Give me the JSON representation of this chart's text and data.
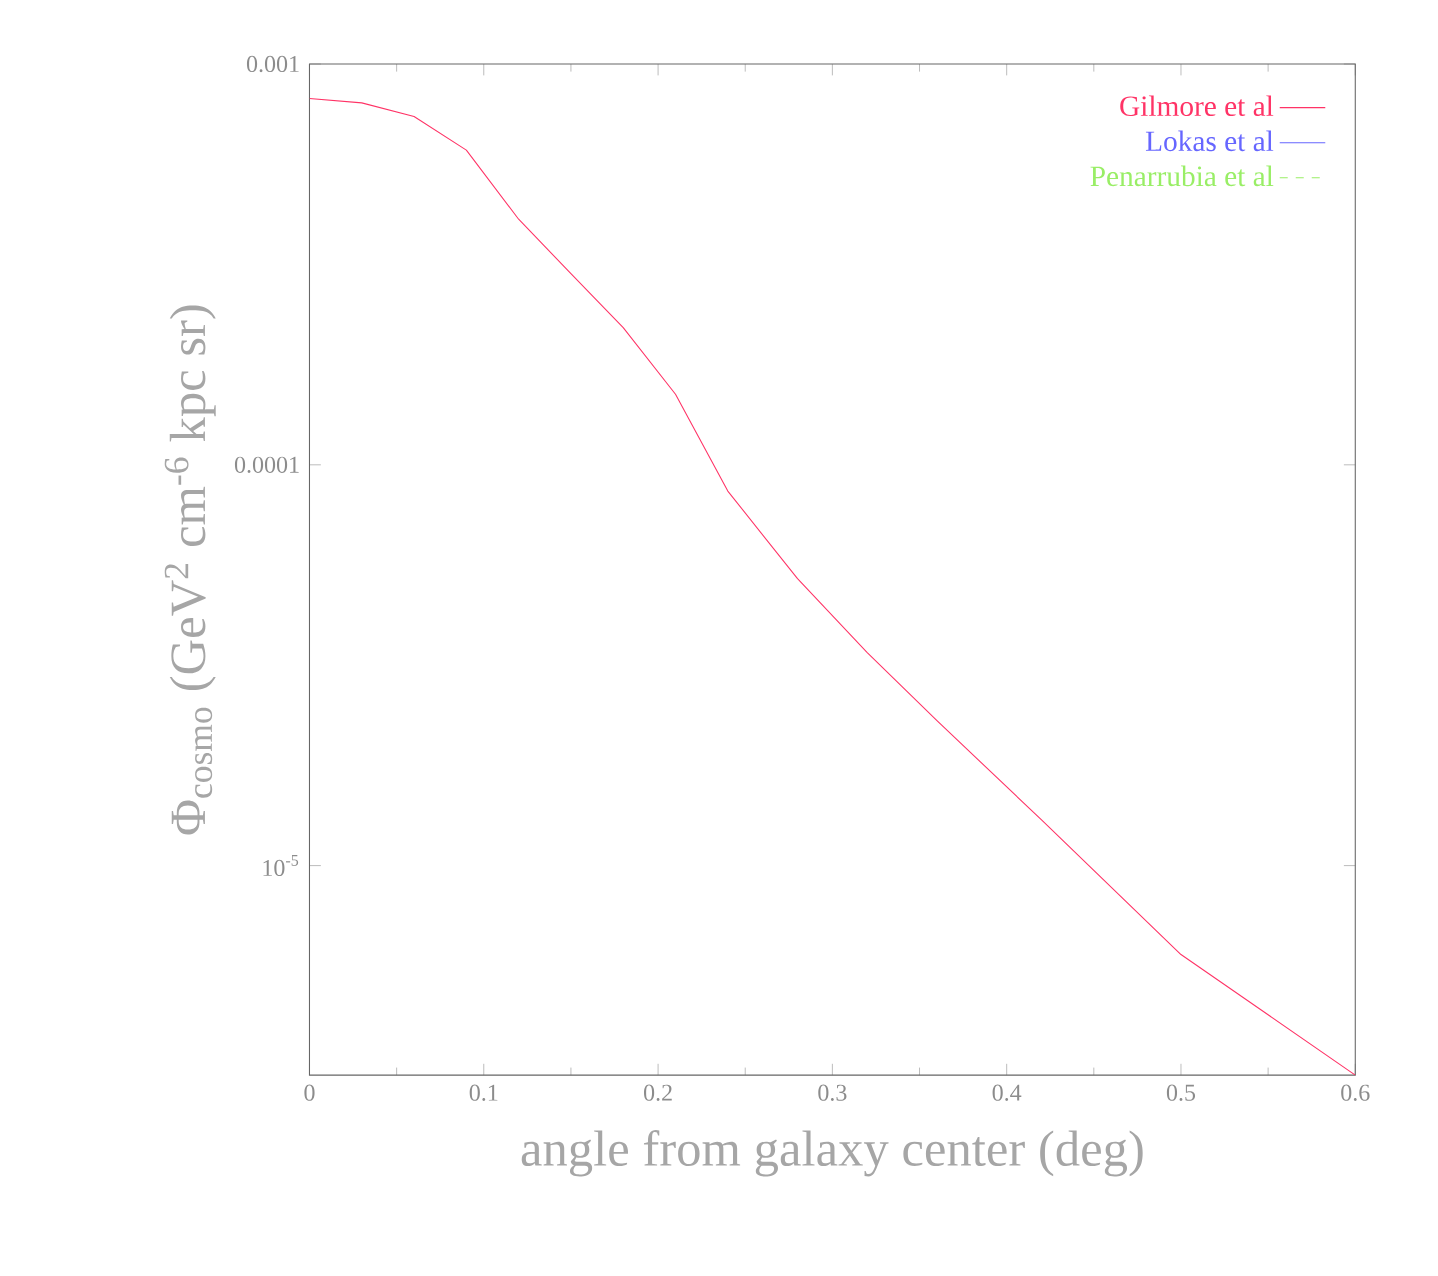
{
  "chart_data": {
    "type": "line",
    "xlabel": "angle from galaxy center (deg)",
    "ylabel": "Φ$_{cosmo}$ (GeV$^{2}$ cm$^{-6}$ kpc sr)",
    "x": [
      0,
      0.03,
      0.06,
      0.09,
      0.12,
      0.15,
      0.18,
      0.21,
      0.24,
      0.28,
      0.32,
      0.36,
      0.42,
      0.5,
      0.6
    ],
    "series": [
      {
        "name": "Gilmore et al",
        "color": "#ff3366",
        "line_style": "solid",
        "values": [
          0.00082,
          0.0008,
          0.00074,
          0.00061,
          0.00041,
          0.0003,
          0.00022,
          0.00015,
          8.6e-05,
          5.2e-05,
          3.4e-05,
          2.3e-05,
          1.3e-05,
          6e-06,
          3e-06
        ]
      },
      {
        "name": "Lokas et al",
        "color": "#6666ff",
        "line_style": "solid",
        "values": [
          null,
          null,
          null,
          null,
          null,
          null,
          null,
          null,
          null,
          null,
          null,
          null,
          null,
          null,
          null
        ]
      },
      {
        "name": "Penarrubia et al",
        "color": "#99ee66",
        "line_style": "dashed",
        "values": [
          null,
          null,
          null,
          null,
          null,
          null,
          null,
          null,
          null,
          null,
          null,
          null,
          null,
          null,
          null
        ]
      }
    ],
    "log": "y",
    "xlim": [
      0,
      0.6
    ],
    "xticks": [
      {
        "value": 0,
        "label": "0"
      },
      0.1,
      0.2,
      0.3,
      0.4,
      0.5,
      0.6
    ],
    "ylim": [
      3e-06,
      0.001
    ],
    "yticks": [
      0.001,
      0.0001,
      {
        "value": 1e-05,
        "label": "10$^{-5}$"
      }
    ],
    "legend": "top right",
    "grid": false,
    "marker": "none"
  }
}
